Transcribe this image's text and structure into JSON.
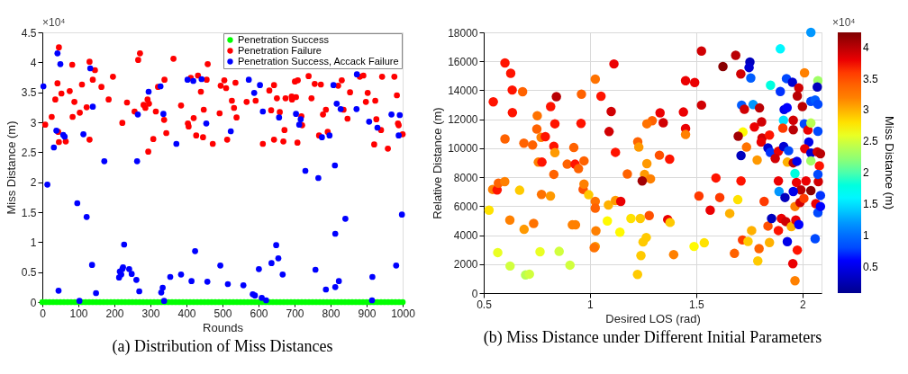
{
  "chart_data": [
    {
      "type": "scatter",
      "title": "(a) Distribution of Miss Distances",
      "xlabel": "Rounds",
      "ylabel": "Miss Distance (m)",
      "annotations": [
        "×10⁴"
      ],
      "xlim": [
        0,
        1000
      ],
      "xticks": [
        0,
        100,
        200,
        300,
        400,
        500,
        600,
        700,
        800,
        900,
        1000
      ],
      "ylim": [
        0,
        4.5
      ],
      "yticks": [
        0,
        0.5,
        1,
        1.5,
        2,
        2.5,
        3,
        3.5,
        4,
        4.5
      ],
      "legend": "top right",
      "marker": "circle",
      "series": [
        {
          "name": "Penetration Success",
          "color": "#00ff00",
          "x": [
            0,
            10,
            20,
            30,
            40,
            50,
            60,
            70,
            80,
            90,
            100,
            110,
            120,
            130,
            140,
            150,
            160,
            170,
            180,
            190,
            200,
            210,
            220,
            230,
            240,
            250,
            260,
            270,
            280,
            290,
            300,
            310,
            320,
            330,
            340,
            350,
            360,
            370,
            380,
            390,
            400,
            410,
            420,
            430,
            440,
            450,
            460,
            470,
            480,
            490,
            500,
            510,
            520,
            530,
            540,
            550,
            560,
            570,
            580,
            590,
            600,
            610,
            620,
            630,
            640,
            650,
            660,
            670,
            680,
            690,
            700,
            710,
            720,
            730,
            740,
            750,
            760,
            770,
            780,
            790,
            800,
            810,
            820,
            830,
            840,
            850,
            860,
            870,
            880,
            890,
            900,
            910,
            920,
            930,
            940,
            950,
            960,
            970,
            980,
            990,
            1000
          ],
          "values": [
            0,
            0,
            0,
            0,
            0,
            0,
            0,
            0,
            0,
            0,
            0,
            0,
            0,
            0,
            0,
            0,
            0,
            0,
            0,
            0,
            0,
            0,
            0,
            0,
            0,
            0,
            0,
            0,
            0,
            0,
            0,
            0,
            0,
            0,
            0,
            0,
            0,
            0,
            0,
            0,
            0,
            0,
            0,
            0,
            0,
            0,
            0,
            0,
            0,
            0,
            0,
            0,
            0,
            0,
            0,
            0,
            0,
            0,
            0,
            0,
            0,
            0,
            0,
            0,
            0,
            0,
            0,
            0,
            0,
            0,
            0,
            0,
            0,
            0,
            0,
            0,
            0,
            0,
            0,
            0,
            0,
            0,
            0,
            0,
            0,
            0,
            0,
            0,
            0,
            0,
            0,
            0,
            0,
            0,
            0,
            0,
            0,
            0,
            0,
            0,
            0
          ]
        },
        {
          "name": "Penetration Failure",
          "color": "#ff0000",
          "x": [
            8,
            26,
            36,
            42,
            46,
            44,
            46,
            53,
            65,
            76,
            83,
            84,
            89,
            104,
            110,
            123,
            131,
            131,
            140,
            146,
            164,
            184,
            196,
            222,
            235,
            256,
            266,
            271,
            281,
            286,
            292,
            294,
            296,
            308,
            315,
            321,
            338,
            339,
            344,
            364,
            385,
            404,
            406,
            412,
            420,
            427,
            432,
            440,
            446,
            448,
            456,
            459,
            473,
            492,
            495,
            505,
            510,
            513,
            526,
            532,
            536,
            539,
            567,
            592,
            612,
            630,
            635,
            643,
            643,
            651,
            659,
            669,
            672,
            675,
            692,
            693,
            701,
            704,
            708,
            709,
            719,
            721,
            739,
            747,
            756,
            768,
            773,
            779,
            787,
            792,
            821,
            831,
            836,
            847,
            854,
            881,
            891,
            898,
            903,
            921,
            924,
            927,
            940,
            943,
            959,
            977,
            984,
            987,
            989,
            1000
          ],
          "values": [
            2.96,
            3.09,
            3.38,
            3.65,
            4.25,
            2.84,
            2.67,
            3.48,
            2.68,
            3.52,
            3.96,
            3.09,
            3.34,
            3.16,
            3.63,
            3.25,
            4.01,
            2.71,
            3.71,
            3.87,
            3.59,
            3.38,
            3.76,
            2.99,
            3.33,
            3.18,
            4.04,
            4.15,
            3.29,
            3.24,
            3.38,
            2.51,
            3.31,
            2.72,
            3.18,
            3.59,
            3.04,
            3.71,
            2.82,
            4.06,
            3.28,
            2.98,
            2.93,
            3.74,
            3.07,
            2.78,
            3.78,
            3.51,
            2.75,
            3.21,
            3.71,
            3.97,
            2.64,
            3.15,
            3.61,
            3.7,
            3.57,
            2.71,
            3.36,
            3.24,
            3.66,
            3.08,
            3.34,
            3.36,
            2.64,
            3.53,
            3.2,
            3.62,
            2.71,
            3.4,
            3.17,
            2.68,
            2.87,
            3.4,
            3.43,
            3.38,
            3.68,
            3.42,
            2.66,
            3.7,
            3.1,
            2.95,
            3.77,
            3.4,
            3.64,
            2.78,
            3.63,
            3.13,
            3.21,
            2.84,
            3.61,
            3.7,
            3.21,
            3.06,
            3.5,
            3.76,
            3.78,
            3.34,
            3.49,
            2.63,
            3.36,
            3.05,
            2.87,
            3.76,
            2.56,
            3.76,
            3.45,
            2.98,
            2.95,
            2.8
          ]
        },
        {
          "name": "Penetration Success, Accack Failure",
          "color": "#0000ff",
          "x": [
            3,
            32,
            42,
            39,
            50,
            58,
            62,
            114,
            133,
            140,
            172,
            263,
            265,
            295,
            328,
            336,
            372,
            403,
            419,
            442,
            455,
            523,
            573,
            588,
            604,
            612,
            657,
            704,
            713,
            717,
            730,
            766,
            776,
            797,
            808,
            812,
            817,
            828,
            872,
            873,
            907,
            930,
            969,
            989,
            992,
            14,
            45,
            97,
            103,
            123,
            138,
            149,
            213,
            215,
            219,
            222,
            224,
            227,
            241,
            248,
            261,
            269,
            330,
            334,
            338,
            355,
            385,
            414,
            424,
            458,
            494,
            515,
            558,
            584,
            590,
            601,
            609,
            621,
            636,
            649,
            655,
            667,
            758,
            787,
            813,
            813,
            823,
            841,
            915,
            916,
            982,
            998
          ],
          "values": [
            3.6,
            2.58,
            4.15,
            2.86,
            3.97,
            2.79,
            2.76,
            2.8,
            3.9,
            3.26,
            2.35,
            2.35,
            3.13,
            3.51,
            3.6,
            3.14,
            2.64,
            3.71,
            3.69,
            3.72,
            2.98,
            2.85,
            3.71,
            3.49,
            3.62,
            3.18,
            3.08,
            3.14,
            2.96,
            3.05,
            2.19,
            2.07,
            2.75,
            2.78,
            3.62,
            2.28,
            3.31,
            3.22,
            3.22,
            3.8,
            3.01,
            2.91,
            3.13,
            2.78,
            3.12,
            1.96,
            0.19,
            1.65,
            0.02,
            1.42,
            0.62,
            0.15,
            0.41,
            0.51,
            0.46,
            0.55,
            0.58,
            0.96,
            0.55,
            0.47,
            0.37,
            0.18,
            0.16,
            0.24,
            0.02,
            0.42,
            0.46,
            0.35,
            0.85,
            0.34,
            0.61,
            0.3,
            0.28,
            0.13,
            0.11,
            0.55,
            0.07,
            0.03,
            0.65,
            0.95,
            0.73,
            0.46,
            0.54,
            0.21,
            0.25,
            1.14,
            0.35,
            1.39,
            0.03,
            0.42,
            0.61,
            1.46
          ]
        }
      ]
    },
    {
      "type": "scatter",
      "title": "(b) Miss Distance under Different Initial Parameters",
      "xlabel": "Desired LOS (rad)",
      "ylabel": "Relative Distance (m)",
      "clabel": "Miss Distance (m)",
      "annotations": [
        "×10⁴"
      ],
      "xlim": [
        0.5,
        2.09
      ],
      "xticks": [
        0.5,
        1,
        1.5,
        2
      ],
      "ylim": [
        0,
        18000
      ],
      "yticks": [
        0,
        2000,
        4000,
        6000,
        8000,
        10000,
        12000,
        14000,
        16000,
        18000
      ],
      "clim": [
        0.08,
        4.24
      ],
      "cticks": [
        0.5,
        1,
        1.5,
        2,
        2.5,
        3,
        3.5,
        4
      ],
      "grid": true,
      "marker": "circle",
      "x": [
        0.545,
        0.6,
        0.627,
        0.634,
        0.683,
        0.635,
        0.6,
        0.689,
        0.73,
        0.752,
        0.75,
        0.77,
        0.79,
        0.815,
        0.842,
        0.835,
        0.83,
        0.835,
        0.757,
        0.774,
        0.893,
        0.93,
        0.946,
        0.972,
        0.924,
        0.958,
        0.96,
        1.025,
        1.052,
        1.113,
        1.1,
        1.09,
        1.12,
        1.225,
        1.23,
        1.268,
        1.293,
        1.268,
        1.33,
        1.345,
        1.327,
        1.375,
        1.44,
        1.45,
        1.493,
        1.45,
        1.45,
        1.525,
        1.525,
        1.626,
        1.686,
        1.71,
        1.753,
        1.749,
        1.757,
        1.714,
        1.727,
        1.768,
        1.798,
        1.808,
        1.774,
        1.72,
        1.698,
        1.81,
        1.845,
        1.806,
        1.737,
        1.711,
        1.787,
        1.838,
        1.849,
        1.887,
        1.872,
        1.912,
        1.935,
        1.929,
        1.957,
        1.974,
        1.85,
        1.896,
        1.896,
        1.925,
        1.953,
        1.983,
        1.976,
        1.914,
        1.928,
        1.911,
        1.957,
        1.957,
        1.908,
        2.0,
        2.009,
        2.026,
        2.04,
        2.073,
        2.01,
        2.04,
        2.073,
        2.07,
        2.04,
        2.06,
        2.073,
        2.03,
        2.011,
        2.04,
        2.07,
        2.085,
        2.04,
        2.08,
        0.525,
        0.542,
        0.563,
        0.569,
        0.599,
        0.623,
        0.566,
        0.624,
        0.669,
        0.69,
        0.697,
        0.715,
        0.735,
        0.765,
        0.772,
        0.814,
        0.83,
        0.855,
        0.906,
        0.917,
        0.932,
        0.968,
        0.972,
        0.994,
        1.025,
        1.025,
        1.028,
        1.025,
        1.02,
        1.087,
        1.082,
        1.12,
        1.145,
        1.141,
        1.193,
        1.237,
        1.176,
        1.257,
        1.285,
        1.246,
        1.279,
        1.265,
        1.25,
        1.24,
        1.224,
        1.366,
        1.377,
        1.394,
        1.49,
        1.538,
        1.513,
        1.566,
        1.593,
        1.611,
        1.658,
        1.696,
        1.711,
        1.718,
        1.744,
        1.761,
        1.68,
        1.796,
        1.79,
        1.82,
        1.845,
        1.838,
        1.855,
        1.887,
        1.887,
        1.89,
        1.918,
        1.929,
        1.901,
        1.922,
        1.948,
        1.969,
        1.965,
        1.983,
        1.965,
        1.972,
        1.993,
        1.989,
        2.007,
        2.017,
        2.04,
        2.063,
        2.075,
        2.073,
        2.085,
        2.085,
        2.073,
        2.06,
        1.976,
        1.955,
        1.965,
        1.957
      ],
      "values": [
        13210,
        15890,
        15180,
        14020,
        13900,
        12460,
        10640,
        10350,
        10220,
        12250,
        11330,
        10750,
        10800,
        12880,
        13560,
        11690,
        10140,
        9700,
        9040,
        9040,
        8900,
        8900,
        8590,
        9130,
        10050,
        11720,
        13730,
        14770,
        13590,
        15820,
        12540,
        11150,
        9720,
        10450,
        10080,
        8940,
        11900,
        11690,
        12440,
        11760,
        9520,
        9250,
        12500,
        14660,
        14540,
        11360,
        10950,
        16710,
        12980,
        15640,
        16420,
        15130,
        15950,
        15570,
        14850,
        12980,
        12690,
        13020,
        12780,
        11820,
        11470,
        11120,
        10830,
        10710,
        10910,
        10430,
        10080,
        9500,
        9190,
        10020,
        9710,
        9790,
        9290,
        10120,
        9830,
        9040,
        8990,
        9100,
        14350,
        13920,
        16860,
        14810,
        14560,
        14160,
        13610,
        12670,
        12800,
        11930,
        11930,
        11280,
        11390,
        12880,
        11680,
        11260,
        11740,
        11170,
        15210,
        18000,
        14660,
        14230,
        13230,
        13330,
        13040,
        10430,
        9970,
        9670,
        9750,
        9620,
        9130,
        8790,
        5730,
        7160,
        7120,
        7590,
        7700,
        5040,
        2800,
        1870,
        7100,
        4400,
        1250,
        1310,
        4810,
        2860,
        6810,
        6700,
        8200,
        2880,
        1930,
        4710,
        4710,
        7160,
        7530,
        6790,
        6330,
        5870,
        4300,
        3220,
        3130,
        6080,
        4980,
        6390,
        6330,
        4210,
        5150,
        5150,
        8220,
        8200,
        7890,
        7740,
        5350,
        3840,
        3530,
        2590,
        1290,
        5080,
        4880,
        2660,
        3220,
        3470,
        6700,
        5730,
        7950,
        6600,
        5500,
        6450,
        7740,
        3670,
        3570,
        4320,
        2740,
        3070,
        2220,
        6330,
        3490,
        4630,
        5150,
        4320,
        7740,
        7010,
        6600,
        3550,
        5150,
        4940,
        4590,
        5040,
        5980,
        4730,
        8260,
        7640,
        7120,
        6250,
        6540,
        7740,
        7080,
        6180,
        7700,
        5560,
        5980,
        6740,
        8200,
        3760,
        2970,
        2030,
        850,
        7010
      ],
      "cvalues": [
        3.7,
        3.7,
        3.7,
        3.7,
        3.4,
        3.7,
        3.4,
        3.4,
        3.4,
        3.3,
        3.4,
        3.2,
        3.7,
        3.7,
        4.0,
        3.7,
        3.7,
        3.1,
        3.2,
        3.7,
        3.4,
        3.7,
        3.4,
        3.4,
        3.4,
        3.7,
        3.4,
        3.3,
        3.7,
        3.8,
        3.9,
        3.9,
        3.7,
        3.4,
        3.1,
        3.1,
        3.4,
        3.3,
        3.8,
        3.9,
        3.5,
        3.7,
        3.8,
        3.8,
        3.8,
        3.8,
        3.2,
        3.9,
        3.9,
        4.2,
        4.0,
        3.9,
        0.3,
        0.4,
        0.9,
        0.9,
        3.9,
        1.2,
        4.0,
        3.9,
        3.8,
        2.7,
        4.1,
        3.9,
        3.7,
        3.8,
        3.3,
        0.3,
        3.1,
        0.4,
        0.7,
        3.8,
        3.9,
        0.4,
        0.8,
        3.0,
        4.0,
        0.5,
        1.8,
        0.7,
        1.6,
        0.8,
        0.4,
        3.9,
        4.0,
        0.5,
        0.6,
        1.5,
        3.9,
        4.0,
        3.6,
        4.0,
        0.8,
        3.8,
        2.4,
        0.8,
        3.2,
        1.2,
        2.3,
        0.3,
        0.8,
        0.9,
        0.8,
        0.5,
        3.8,
        0.4,
        3.9,
        4.0,
        2.3,
        3.7,
        2.8,
        3.2,
        3.7,
        3.4,
        3.2,
        3.2,
        2.6,
        2.5,
        2.9,
        3.1,
        2.4,
        2.5,
        3.3,
        2.6,
        3.3,
        3.1,
        3.4,
        2.5,
        2.5,
        3.2,
        3.2,
        3.5,
        3.2,
        2.9,
        3.3,
        3.4,
        3.2,
        3.1,
        3.3,
        3.0,
        2.7,
        3.1,
        3.8,
        2.7,
        2.8,
        2.9,
        3.4,
        3.1,
        3.2,
        4.1,
        3.5,
        2.9,
        2.9,
        2.9,
        2.9,
        3.8,
        2.9,
        3.2,
        2.7,
        2.8,
        3.6,
        3.8,
        3.7,
        3.6,
        3.0,
        2.8,
        3.7,
        3.6,
        2.9,
        3.0,
        3.4,
        3.4,
        2.9,
        3.6,
        3.0,
        3.5,
        0.3,
        3.7,
        3.8,
        1.2,
        0.3,
        0.5,
        3.8,
        3.9,
        3.0,
        3.8,
        3.2,
        0.6,
        1.8,
        3.8,
        4.0,
        3.9,
        3.6,
        3.8,
        4.2,
        3.8,
        3.9,
        0.8,
        0.6,
        0.7,
        0.8,
        0.8,
        3.7,
        3.8,
        3.2,
        0.5
      ]
    }
  ]
}
